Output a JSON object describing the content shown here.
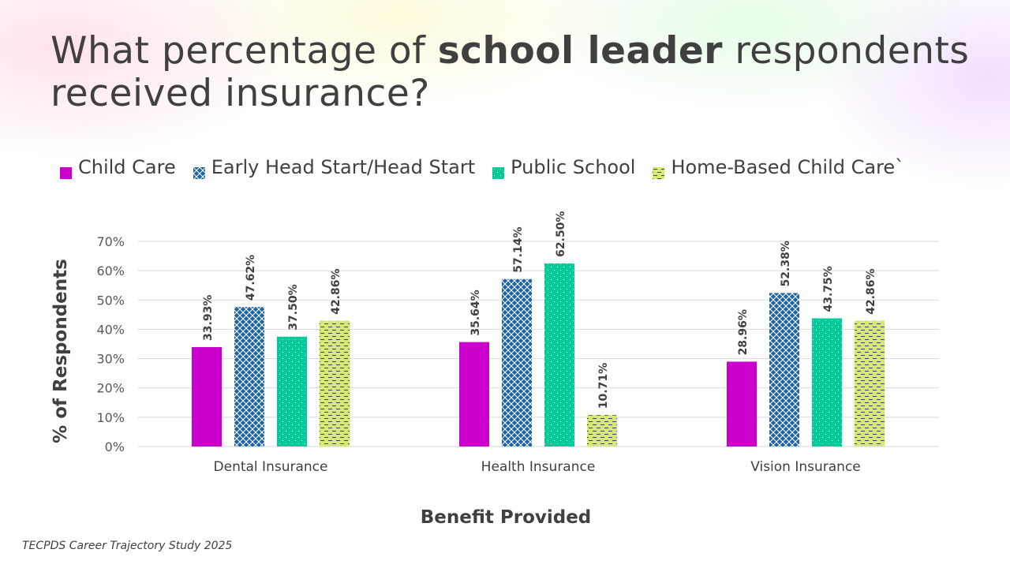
{
  "title": {
    "pre": "What percentage of ",
    "bold": "school leader",
    "post": " respondents received insurance?"
  },
  "source": "TECPDS Career Trajectory Study 2025",
  "chart_data": {
    "type": "bar",
    "categories": [
      "Dental Insurance",
      "Health Insurance",
      "Vision Insurance"
    ],
    "series": [
      {
        "name": "Child Care",
        "color": "#CC00CC",
        "pattern": "solid",
        "values": [
          33.93,
          35.64,
          28.96
        ],
        "labels": [
          "33.93%",
          "35.64%",
          "28.96%"
        ]
      },
      {
        "name": "Early Head Start/Head Start",
        "color": "#1F64A8",
        "pattern": "diamond-grid",
        "values": [
          47.62,
          57.14,
          52.38
        ],
        "labels": [
          "47.62%",
          "57.14%",
          "52.38%"
        ]
      },
      {
        "name": "Public School",
        "color": "#00CC99",
        "pattern": "dots",
        "values": [
          37.5,
          62.5,
          43.75
        ],
        "labels": [
          "37.50%",
          "62.50%",
          "43.75%"
        ]
      },
      {
        "name": "Home-Based Child Care`",
        "color": "#D4EC6A",
        "pattern": "dashes",
        "values": [
          42.86,
          10.71,
          42.86
        ],
        "labels": [
          "42.86%",
          "10.71%",
          "42.86%"
        ]
      }
    ],
    "xlabel": "Benefit Provided",
    "ylabel": "% of Respondents",
    "ylim": [
      0,
      70
    ],
    "yticks": [
      "0%",
      "10%",
      "20%",
      "30%",
      "40%",
      "50%",
      "60%",
      "70%"
    ],
    "grid": true,
    "legend": "top"
  }
}
